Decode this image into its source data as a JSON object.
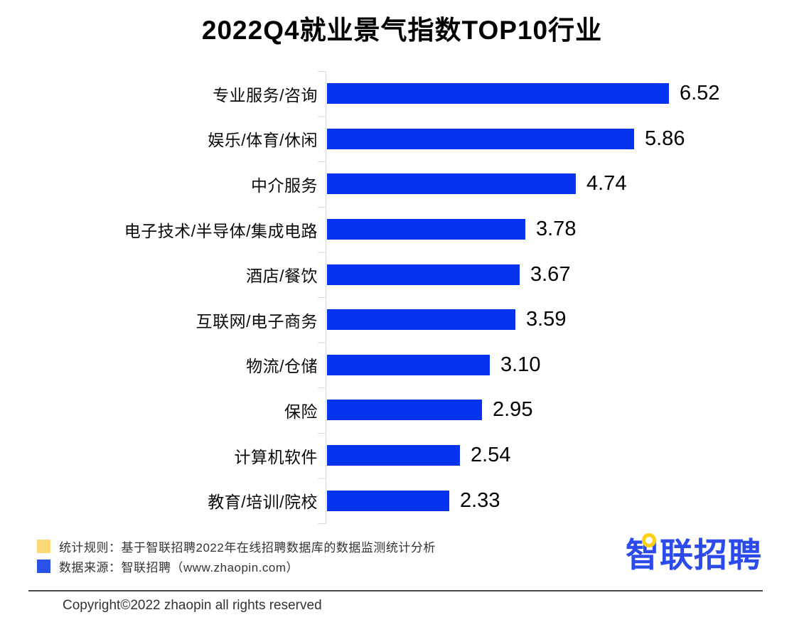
{
  "chart_data": {
    "type": "bar",
    "orientation": "horizontal",
    "title": "2022Q4就业景气指数TOP10行业",
    "categories": [
      "专业服务/咨询",
      "娱乐/体育/休闲",
      "中介服务",
      "电子技术/半导体/集成电路",
      "酒店/餐饮",
      "互联网/电子商务",
      "物流/仓储",
      "保险",
      "计算机软件",
      "教育/培训/院校"
    ],
    "values": [
      6.52,
      5.86,
      4.74,
      3.78,
      3.67,
      3.59,
      3.1,
      2.95,
      2.54,
      2.33
    ],
    "value_labels": [
      "6.52",
      "5.86",
      "4.74",
      "3.78",
      "3.67",
      "3.59",
      "3.10",
      "2.95",
      "2.54",
      "2.33"
    ],
    "xlim": [
      0,
      7
    ],
    "grid": false,
    "legend_position": "none",
    "bar_color": "#0533f0",
    "axis_color": "#d9d9d9",
    "value_label_color": "#000000",
    "category_label_color": "#0a0a0a"
  },
  "footer": {
    "legend": [
      {
        "swatch_name": "yellow-square",
        "swatch_color": "#fad875",
        "label": "统计规则：基于智联招聘2022年在线招聘数据库的数据监测统计分析"
      },
      {
        "swatch_name": "blue-square",
        "swatch_color": "#2a52e8",
        "label": "数据来源：智联招聘（www.zhaopin.com）"
      }
    ],
    "logo": {
      "text": "智联招聘",
      "color": "#2b4bee",
      "accent_color": "#ffd011"
    },
    "copyright": "Copyright©2022 zhaopin all rights reserved"
  }
}
